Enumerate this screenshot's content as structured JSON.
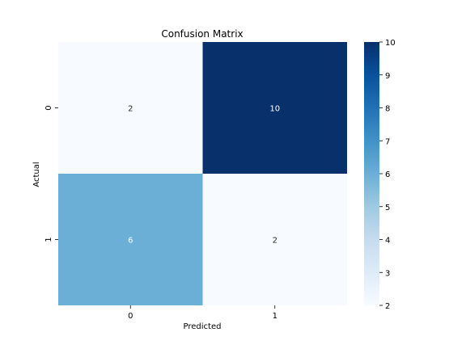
{
  "chart_data": {
    "type": "heatmap",
    "title": "Confusion Matrix",
    "xlabel": "Predicted",
    "ylabel": "Actual",
    "x_categories": [
      "0",
      "1"
    ],
    "y_categories": [
      "0",
      "1"
    ],
    "values": [
      [
        2,
        10
      ],
      [
        6,
        2
      ]
    ],
    "colormap": "Blues",
    "colorbar": {
      "min": 2,
      "max": 10,
      "ticks": [
        "2",
        "3",
        "4",
        "5",
        "6",
        "7",
        "8",
        "9",
        "10"
      ]
    },
    "colors": {
      "low": "#f7fbff",
      "mid": "#6aaed6",
      "high": "#08306b",
      "annotation_dark": "#262626",
      "annotation_light": "#ffffff"
    }
  }
}
